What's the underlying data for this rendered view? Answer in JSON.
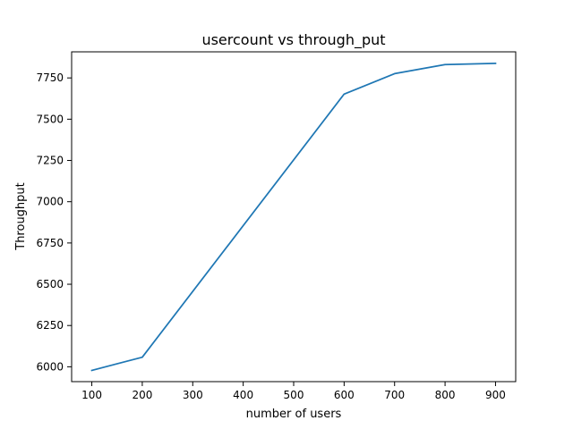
{
  "chart_data": {
    "type": "line",
    "title": "usercount vs through_put",
    "xlabel": "number of users",
    "ylabel": "Throughput",
    "xlim": [
      60,
      940
    ],
    "ylim": [
      5910,
      7908
    ],
    "grid": false,
    "x_ticks": [
      100,
      200,
      300,
      400,
      500,
      600,
      700,
      800,
      900
    ],
    "y_ticks": [
      6000,
      6250,
      6500,
      6750,
      7000,
      7250,
      7500,
      7750
    ],
    "series": [
      {
        "x": [
          100,
          200,
          600,
          700,
          800,
          900
        ],
        "y": [
          5978,
          6058,
          7652,
          7776,
          7831,
          7838
        ],
        "color": "#1f77b4"
      }
    ]
  }
}
